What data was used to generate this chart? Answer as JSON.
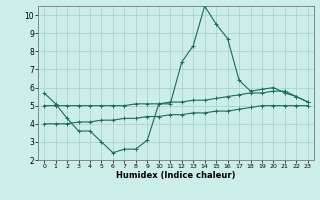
{
  "title": "",
  "xlabel": "Humidex (Indice chaleur)",
  "background_color": "#cceee8",
  "grid_color": "#aad4ce",
  "line_color": "#1a6b5a",
  "xlim": [
    -0.5,
    23.5
  ],
  "ylim": [
    2,
    10.5
  ],
  "yticks": [
    2,
    3,
    4,
    5,
    6,
    7,
    8,
    9,
    10
  ],
  "xticks": [
    0,
    1,
    2,
    3,
    4,
    5,
    6,
    7,
    8,
    9,
    10,
    11,
    12,
    13,
    14,
    15,
    16,
    17,
    18,
    19,
    20,
    21,
    22,
    23
  ],
  "line1_x": [
    0,
    1,
    2,
    3,
    4,
    5,
    6,
    7,
    8,
    9,
    10,
    11,
    12,
    13,
    14,
    15,
    16,
    17,
    18,
    19,
    20,
    21,
    22,
    23
  ],
  "line1_y": [
    5.7,
    5.1,
    4.3,
    3.6,
    3.6,
    3.0,
    2.4,
    2.6,
    2.6,
    3.1,
    5.1,
    5.1,
    7.4,
    8.3,
    10.5,
    9.5,
    8.7,
    6.4,
    5.8,
    5.9,
    6.0,
    5.7,
    5.5,
    5.2
  ],
  "line2_x": [
    0,
    1,
    2,
    3,
    4,
    5,
    6,
    7,
    8,
    9,
    10,
    11,
    12,
    13,
    14,
    15,
    16,
    17,
    18,
    19,
    20,
    21,
    22,
    23
  ],
  "line2_y": [
    5.0,
    5.0,
    5.0,
    5.0,
    5.0,
    5.0,
    5.0,
    5.0,
    5.1,
    5.1,
    5.1,
    5.2,
    5.2,
    5.3,
    5.3,
    5.4,
    5.5,
    5.6,
    5.7,
    5.7,
    5.8,
    5.8,
    5.5,
    5.2
  ],
  "line3_x": [
    0,
    1,
    2,
    3,
    4,
    5,
    6,
    7,
    8,
    9,
    10,
    11,
    12,
    13,
    14,
    15,
    16,
    17,
    18,
    19,
    20,
    21,
    22,
    23
  ],
  "line3_y": [
    4.0,
    4.0,
    4.0,
    4.1,
    4.1,
    4.2,
    4.2,
    4.3,
    4.3,
    4.4,
    4.4,
    4.5,
    4.5,
    4.6,
    4.6,
    4.7,
    4.7,
    4.8,
    4.9,
    5.0,
    5.0,
    5.0,
    5.0,
    5.0
  ]
}
